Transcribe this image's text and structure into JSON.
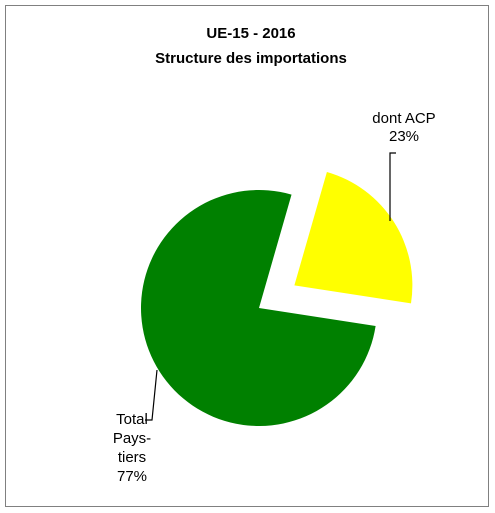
{
  "chart_data": {
    "type": "pie",
    "title": "UE-15 - 2016",
    "subtitle": "Structure des importations",
    "slices": [
      {
        "label_lines": [
          "dont ACP",
          "23%"
        ],
        "value": 23,
        "color": "#ffff00",
        "exploded": true
      },
      {
        "label_lines": [
          "Total",
          "Pays-",
          "tiers",
          "77%"
        ],
        "value": 77,
        "color": "#008000",
        "exploded": false
      }
    ],
    "legend": "none"
  }
}
